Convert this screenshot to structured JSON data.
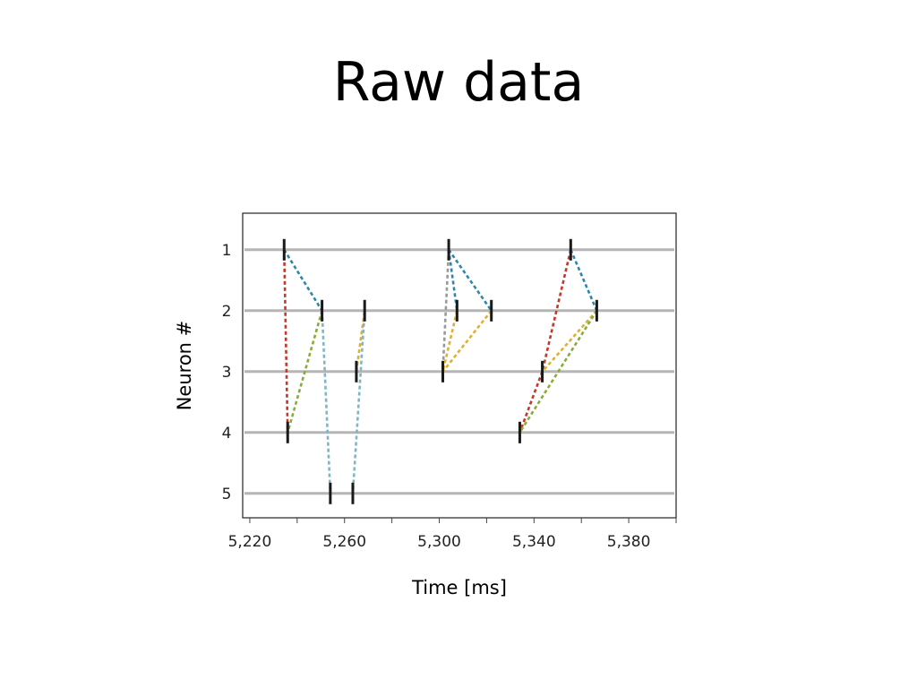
{
  "slide": {
    "title": "Raw data"
  },
  "chart_data": {
    "type": "scatter",
    "xlabel": "Time [ms]",
    "ylabel": "Neuron #",
    "xlim": [
      5217,
      5400
    ],
    "ylim": [
      0.4,
      5.4
    ],
    "x_ticks": [
      5220,
      5260,
      5300,
      5340,
      5380
    ],
    "x_tick_labels": [
      "5,220",
      "5,260",
      "5,300",
      "5,340",
      "5,380"
    ],
    "y_ticks": [
      1,
      2,
      3,
      4,
      5
    ],
    "y_tick_labels": [
      "1",
      "2",
      "3",
      "4",
      "5"
    ],
    "grid": true,
    "spikes": [
      {
        "x": 5234.5,
        "neuron": 1
      },
      {
        "x": 5250.5,
        "neuron": 2
      },
      {
        "x": 5236.0,
        "neuron": 4
      },
      {
        "x": 5254.0,
        "neuron": 5
      },
      {
        "x": 5265.0,
        "neuron": 3
      },
      {
        "x": 5268.5,
        "neuron": 2
      },
      {
        "x": 5263.5,
        "neuron": 5
      },
      {
        "x": 5304.0,
        "neuron": 1
      },
      {
        "x": 5307.5,
        "neuron": 2
      },
      {
        "x": 5322.0,
        "neuron": 2
      },
      {
        "x": 5301.5,
        "neuron": 3
      },
      {
        "x": 5355.5,
        "neuron": 1
      },
      {
        "x": 5366.5,
        "neuron": 2
      },
      {
        "x": 5343.5,
        "neuron": 3
      },
      {
        "x": 5334.0,
        "neuron": 4
      }
    ],
    "links": [
      {
        "from": [
          5234.5,
          1
        ],
        "to": [
          5250.5,
          2
        ],
        "color": "#2e86ab"
      },
      {
        "from": [
          5234.5,
          1
        ],
        "to": [
          5236.0,
          4
        ],
        "color": "#c0392b"
      },
      {
        "from": [
          5250.5,
          2
        ],
        "to": [
          5236.0,
          4
        ],
        "color": "#8aab3c"
      },
      {
        "from": [
          5250.5,
          2
        ],
        "to": [
          5254.0,
          5
        ],
        "color": "#7fb6c6"
      },
      {
        "from": [
          5265.0,
          3
        ],
        "to": [
          5268.5,
          2
        ],
        "color": "#e0b030"
      },
      {
        "from": [
          5268.5,
          2
        ],
        "to": [
          5263.5,
          5
        ],
        "color": "#7fb6c6"
      },
      {
        "from": [
          5304.0,
          1
        ],
        "to": [
          5307.5,
          2
        ],
        "color": "#2e86ab"
      },
      {
        "from": [
          5304.0,
          1
        ],
        "to": [
          5322.0,
          2
        ],
        "color": "#2e86ab"
      },
      {
        "from": [
          5304.0,
          1
        ],
        "to": [
          5301.5,
          3
        ],
        "color": "#999999"
      },
      {
        "from": [
          5307.5,
          2
        ],
        "to": [
          5301.5,
          3
        ],
        "color": "#e0b030"
      },
      {
        "from": [
          5322.0,
          2
        ],
        "to": [
          5301.5,
          3
        ],
        "color": "#e0b030"
      },
      {
        "from": [
          5355.5,
          1
        ],
        "to": [
          5366.5,
          2
        ],
        "color": "#2e86ab"
      },
      {
        "from": [
          5355.5,
          1
        ],
        "to": [
          5343.5,
          3
        ],
        "color": "#c0392b"
      },
      {
        "from": [
          5343.5,
          3
        ],
        "to": [
          5334.0,
          4
        ],
        "color": "#c0392b"
      },
      {
        "from": [
          5366.5,
          2
        ],
        "to": [
          5343.5,
          3
        ],
        "color": "#e0b030"
      },
      {
        "from": [
          5366.5,
          2
        ],
        "to": [
          5334.0,
          4
        ],
        "color": "#8aab3c"
      }
    ]
  }
}
